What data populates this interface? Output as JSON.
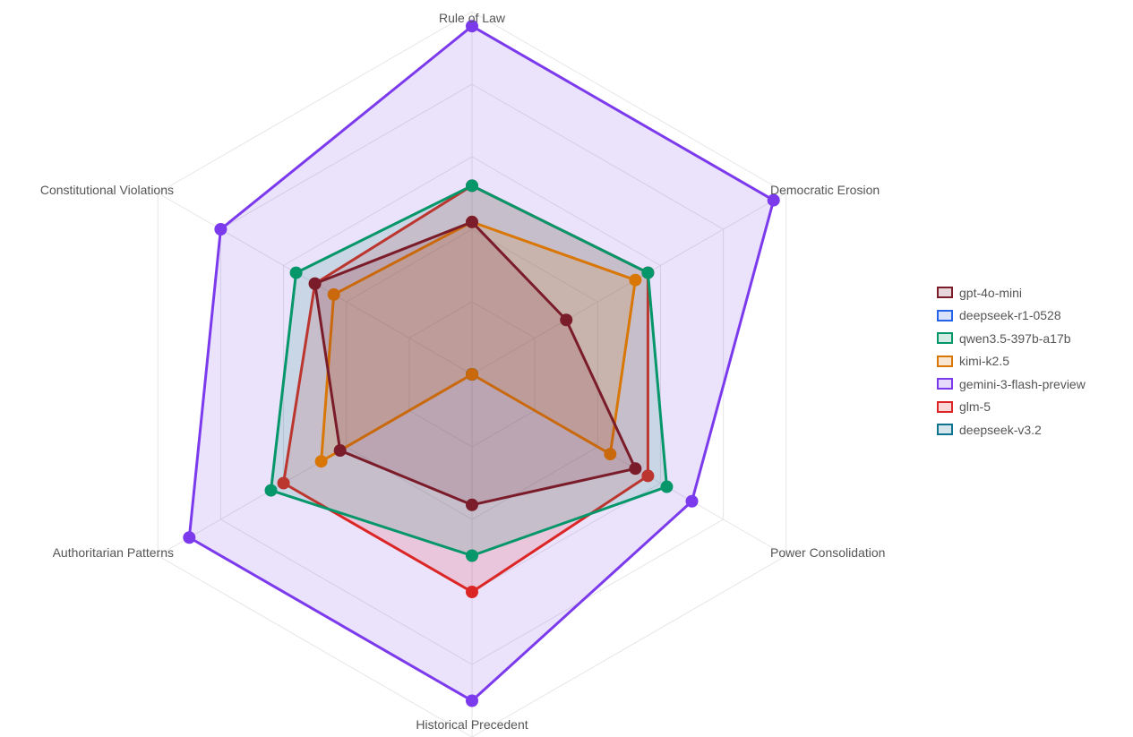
{
  "chart_data": {
    "type": "radar",
    "axes": [
      "Rule of Law",
      "Democratic Erosion",
      "Power Consolidation",
      "Historical Precedent",
      "Authoritarian Patterns",
      "Constitutional Violations"
    ],
    "rlim": [
      0,
      5
    ],
    "grid_rings": 5,
    "grid": true,
    "legend_position": "right",
    "series": [
      {
        "name": "deepseek-r1-0528",
        "color": "#2563eb",
        "values": [
          0,
          0,
          0,
          0,
          0,
          0
        ]
      },
      {
        "name": "deepseek-v3.2",
        "color": "#0e7490",
        "values": [
          0,
          0,
          0,
          0,
          0,
          0
        ]
      },
      {
        "name": "gemini-3-flash-preview",
        "color": "#7c3aed",
        "values": [
          4.8,
          4.8,
          3.5,
          4.5,
          4.5,
          4.0
        ]
      },
      {
        "name": "glm-5",
        "color": "#dc2626",
        "values": [
          2.6,
          2.8,
          2.8,
          3.0,
          3.0,
          2.5
        ]
      },
      {
        "name": "qwen3.5-397b-a17b",
        "color": "#059669",
        "values": [
          2.6,
          2.8,
          3.1,
          2.5,
          3.2,
          2.8
        ]
      },
      {
        "name": "kimi-k2.5",
        "color": "#d97706",
        "values": [
          2.1,
          2.6,
          2.2,
          0,
          2.4,
          2.2
        ]
      },
      {
        "name": "gpt-4o-mini",
        "color": "#7a1c2a",
        "values": [
          2.1,
          1.5,
          2.6,
          1.8,
          2.1,
          2.5
        ]
      }
    ]
  },
  "legend": [
    {
      "label": "gpt-4o-mini",
      "color": "#7a1c2a"
    },
    {
      "label": "deepseek-r1-0528",
      "color": "#2563eb"
    },
    {
      "label": "qwen3.5-397b-a17b",
      "color": "#059669"
    },
    {
      "label": "kimi-k2.5",
      "color": "#d97706"
    },
    {
      "label": "gemini-3-flash-preview",
      "color": "#7c3aed"
    },
    {
      "label": "glm-5",
      "color": "#dc2626"
    },
    {
      "label": "deepseek-v3.2",
      "color": "#0e7490"
    }
  ]
}
